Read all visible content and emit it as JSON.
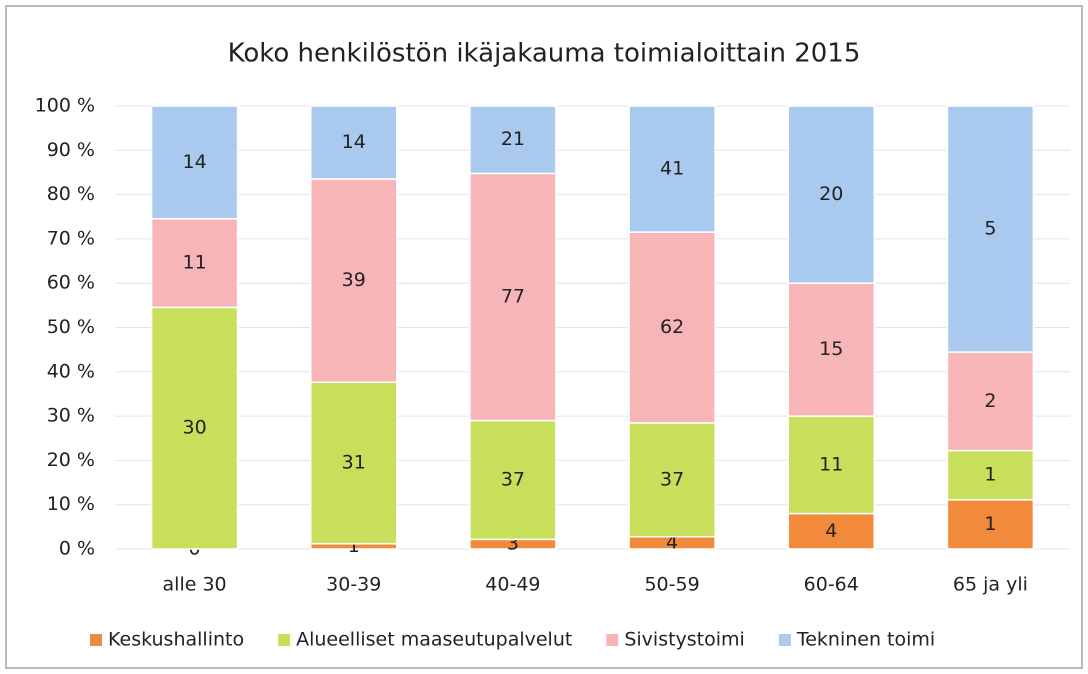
{
  "chart_data": {
    "type": "bar",
    "stacked_percent": true,
    "title": "Koko henkilöstön ikäjakauma toimialoittain 2015",
    "categories": [
      "alle 30",
      "30-39",
      "40-49",
      "50-59",
      "60-64",
      "65 ja yli"
    ],
    "series": [
      {
        "name": "Keskushallinto",
        "color": "#f28a3c",
        "values": [
          0,
          1,
          3,
          4,
          4,
          1
        ]
      },
      {
        "name": "Alueelliset maaseutupalvelut",
        "color": "#c8df5c",
        "values": [
          30,
          31,
          37,
          37,
          11,
          1
        ]
      },
      {
        "name": "Sivistystoimi",
        "color": "#f8b5b8",
        "values": [
          11,
          39,
          77,
          62,
          15,
          2
        ]
      },
      {
        "name": "Tekninen toimi",
        "color": "#aac9ee",
        "values": [
          14,
          14,
          21,
          41,
          20,
          5
        ]
      }
    ],
    "ylim": [
      0,
      100
    ],
    "yticks": [
      {
        "value": 0,
        "label": "0 %"
      },
      {
        "value": 10,
        "label": "10 %"
      },
      {
        "value": 20,
        "label": "20 %"
      },
      {
        "value": 30,
        "label": "30 %"
      },
      {
        "value": 40,
        "label": "40 %"
      },
      {
        "value": 50,
        "label": "50 %"
      },
      {
        "value": 60,
        "label": "60 %"
      },
      {
        "value": 70,
        "label": "70 %"
      },
      {
        "value": 80,
        "label": "80 %"
      },
      {
        "value": 90,
        "label": "90 %"
      },
      {
        "value": 100,
        "label": "100 %"
      }
    ],
    "legend": "bottom"
  }
}
